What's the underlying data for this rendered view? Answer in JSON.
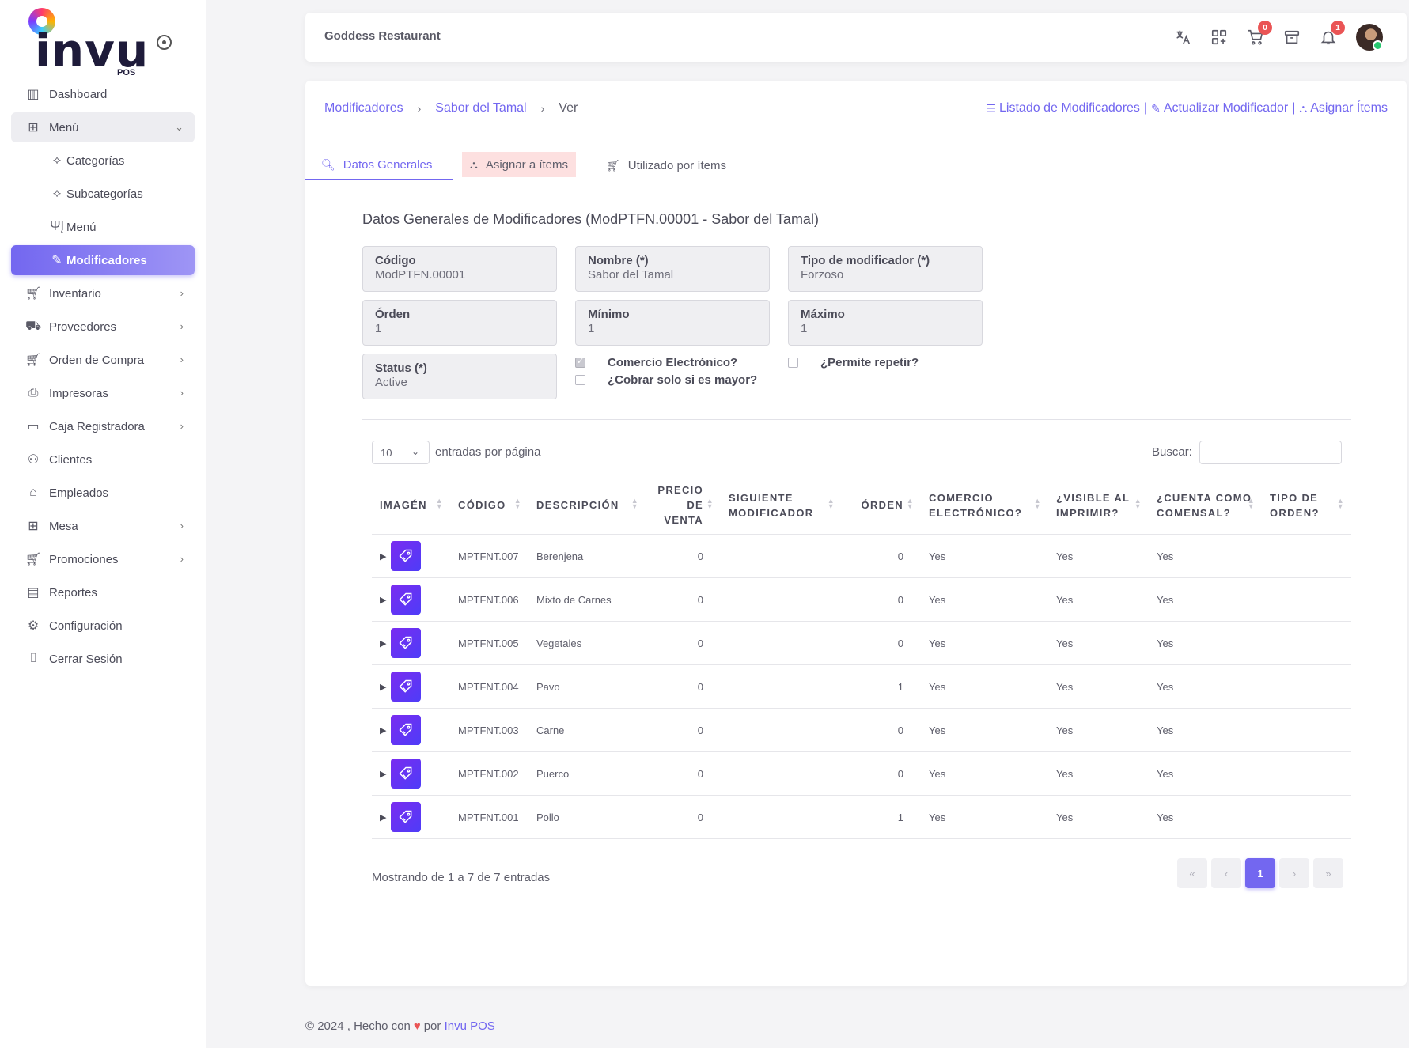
{
  "brand": {
    "logo_text": "invu",
    "logo_sub": "POS"
  },
  "sidebar": {
    "items": [
      {
        "label": "Dashboard",
        "icon": "bar-chart-icon"
      },
      {
        "label": "Menú",
        "icon": "grid-icon",
        "open": true
      },
      {
        "label": "Categorías",
        "icon": "nodes-icon",
        "sub": true
      },
      {
        "label": "Subcategorías",
        "icon": "nodes-icon",
        "sub": true
      },
      {
        "label": "Menú",
        "icon": "fork-knife-icon",
        "sub": true
      },
      {
        "label": "Modificadores",
        "icon": "edit-tag-icon",
        "sub": true,
        "active": true
      },
      {
        "label": "Inventario",
        "icon": "cart-icon",
        "chevron": true
      },
      {
        "label": "Proveedores",
        "icon": "truck-icon",
        "chevron": true
      },
      {
        "label": "Orden de Compra",
        "icon": "cart-icon",
        "chevron": true
      },
      {
        "label": "Impresoras",
        "icon": "printer-icon",
        "chevron": true
      },
      {
        "label": "Caja Registradora",
        "icon": "register-icon",
        "chevron": true
      },
      {
        "label": "Clientes",
        "icon": "users-icon"
      },
      {
        "label": "Empleados",
        "icon": "briefcase-icon"
      },
      {
        "label": "Mesa",
        "icon": "table-icon",
        "chevron": true
      },
      {
        "label": "Promociones",
        "icon": "cart-icon",
        "chevron": true
      },
      {
        "label": "Reportes",
        "icon": "file-icon"
      },
      {
        "label": "Configuración",
        "icon": "gear-icon"
      },
      {
        "label": "Cerrar Sesión",
        "icon": "door-icon"
      }
    ]
  },
  "header": {
    "title": "Goddess Restaurant",
    "cart_badge": "0",
    "bell_badge": "1"
  },
  "breadcrumb": {
    "root": "Modificadores",
    "parent": "Sabor del Tamal",
    "current": "Ver"
  },
  "actions": {
    "list": "Listado de Modificadores",
    "update": "Actualizar Modificador",
    "assign": "Asignar Ítems",
    "pipe": "|"
  },
  "tabs": {
    "general": "Datos Generales",
    "assign": "Asignar a ítems",
    "used": "Utilizado por ítems"
  },
  "section_title": "Datos Generales de Modificadores (ModPTFN.00001 - Sabor del Tamal)",
  "fields": {
    "codigo": {
      "label": "Código",
      "value": "ModPTFN.00001"
    },
    "nombre": {
      "label": "Nombre (*)",
      "value": "Sabor del Tamal"
    },
    "tipo": {
      "label": "Tipo de modificador (*)",
      "value": "Forzoso"
    },
    "orden": {
      "label": "Órden",
      "value": "1"
    },
    "minimo": {
      "label": "Mínimo",
      "value": "1"
    },
    "maximo": {
      "label": "Máximo",
      "value": "1"
    },
    "status": {
      "label": "Status (*)",
      "value": "Active"
    }
  },
  "checks": {
    "ecommerce": {
      "label": "Comercio Electrónico?",
      "checked": true
    },
    "charge_higher": {
      "label": "¿Cobrar solo si es mayor?",
      "checked": false
    },
    "repeat": {
      "label": "¿Permite repetir?",
      "checked": false
    }
  },
  "table_controls": {
    "page_size": "10",
    "page_size_label": "entradas por página",
    "search_label": "Buscar:"
  },
  "table": {
    "headers": {
      "imagen": "Imagén",
      "codigo": "Código",
      "descripcion": "Descripción",
      "precio": "Precio de venta",
      "siguiente": "Siguiente modificador",
      "orden": "Órden",
      "comercio": "Comercio electrónico?",
      "visible": "¿Visible al imprimir?",
      "comensal": "¿Cuenta como comensal?",
      "tipo": "Tipo de orden?"
    },
    "rows": [
      {
        "codigo": "MPTFNT.007",
        "descripcion": "Berenjena",
        "precio": "0",
        "siguiente": "",
        "orden": "0",
        "comercio": "Yes",
        "visible": "Yes",
        "comensal": "Yes",
        "tipo": ""
      },
      {
        "codigo": "MPTFNT.006",
        "descripcion": "Mixto de Carnes",
        "precio": "0",
        "siguiente": "",
        "orden": "0",
        "comercio": "Yes",
        "visible": "Yes",
        "comensal": "Yes",
        "tipo": ""
      },
      {
        "codigo": "MPTFNT.005",
        "descripcion": "Vegetales",
        "precio": "0",
        "siguiente": "",
        "orden": "0",
        "comercio": "Yes",
        "visible": "Yes",
        "comensal": "Yes",
        "tipo": ""
      },
      {
        "codigo": "MPTFNT.004",
        "descripcion": "Pavo",
        "precio": "0",
        "siguiente": "",
        "orden": "1",
        "comercio": "Yes",
        "visible": "Yes",
        "comensal": "Yes",
        "tipo": ""
      },
      {
        "codigo": "MPTFNT.003",
        "descripcion": "Carne",
        "precio": "0",
        "siguiente": "",
        "orden": "0",
        "comercio": "Yes",
        "visible": "Yes",
        "comensal": "Yes",
        "tipo": ""
      },
      {
        "codigo": "MPTFNT.002",
        "descripcion": "Puerco",
        "precio": "0",
        "siguiente": "",
        "orden": "0",
        "comercio": "Yes",
        "visible": "Yes",
        "comensal": "Yes",
        "tipo": ""
      },
      {
        "codigo": "MPTFNT.001",
        "descripcion": "Pollo",
        "precio": "0",
        "siguiente": "",
        "orden": "1",
        "comercio": "Yes",
        "visible": "Yes",
        "comensal": "Yes",
        "tipo": ""
      }
    ]
  },
  "pagination": {
    "info": "Mostrando de 1 a 7 de 7 entradas",
    "first": "«",
    "prev": "‹",
    "current": "1",
    "next": "›",
    "last": "»"
  },
  "footer": {
    "prefix": "© 2024 , Hecho con",
    "heart": "♥",
    "by": "por",
    "brand": "Invu POS"
  },
  "colors": {
    "accent": "#7367f0",
    "badge": "#ea5455",
    "tab_highlight": "#fde0e0"
  }
}
